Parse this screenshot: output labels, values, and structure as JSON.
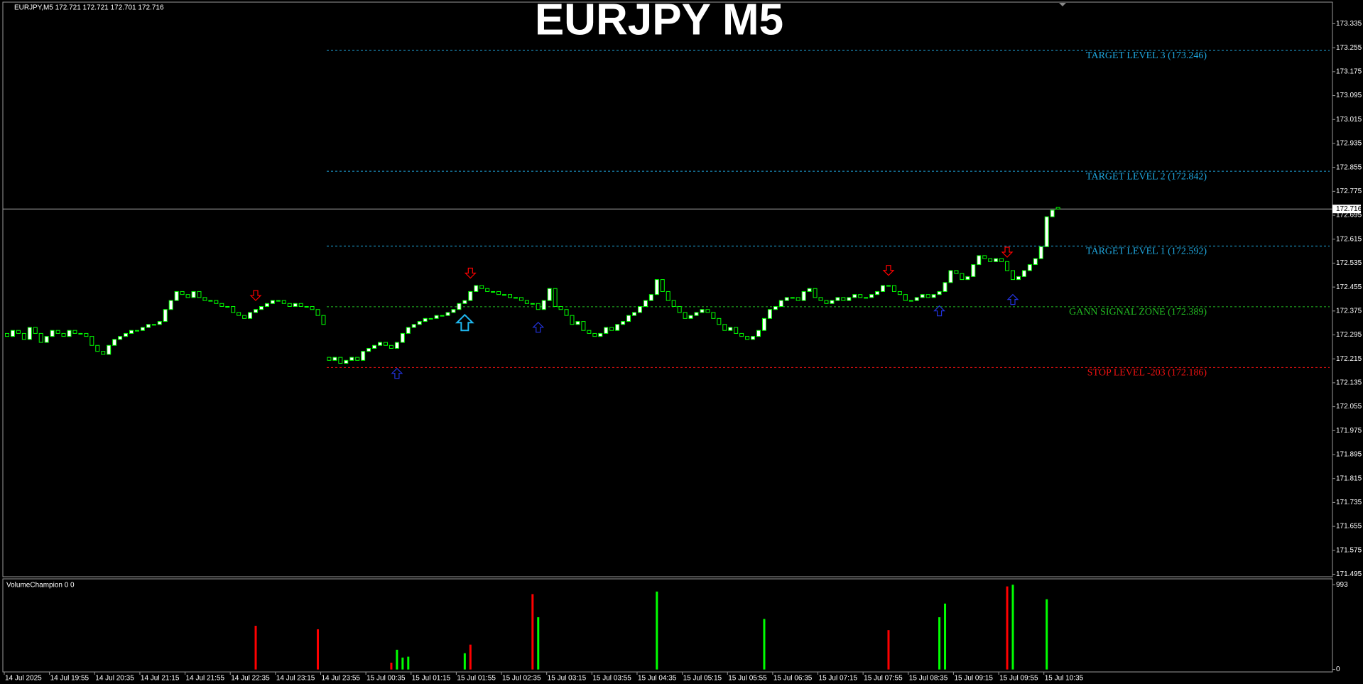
{
  "chart_data": [
    {
      "type": "candlestick",
      "title": "EURJPY M5",
      "symbol_info": "EURJPY,M5  172.721 172.721 172.701 172.716",
      "up_color": "#00ff00",
      "down_color": "#00ff00",
      "open": [
        172.3,
        172.29,
        172.31,
        172.3,
        172.28,
        172.32,
        172.3,
        172.27,
        172.29,
        172.31,
        172.3,
        172.29,
        172.31,
        172.3,
        172.3,
        172.29,
        172.26,
        172.24,
        172.23,
        172.26,
        172.28,
        172.29,
        172.3,
        172.31,
        172.31,
        172.32,
        172.33,
        172.33,
        172.34,
        172.38,
        172.41,
        172.44,
        172.43,
        172.42,
        172.44,
        172.42,
        172.41,
        172.41,
        172.4,
        172.39,
        172.39,
        172.37,
        172.36,
        172.35,
        172.37,
        172.38,
        172.39,
        172.4,
        172.41,
        172.41,
        172.4,
        172.39,
        172.4,
        172.39,
        172.39,
        172.38,
        172.36,
        172.22,
        172.21,
        172.22,
        172.2,
        172.21,
        172.22,
        172.21,
        172.24,
        172.25,
        172.26,
        172.27,
        172.26,
        172.25,
        172.27,
        172.3,
        172.32,
        172.33,
        172.34,
        172.35,
        172.35,
        172.36,
        172.36,
        172.37,
        172.38,
        172.4,
        172.41,
        172.44,
        172.46,
        172.45,
        172.44,
        172.44,
        172.43,
        172.43,
        172.42,
        172.42,
        172.41,
        172.4,
        172.4,
        172.38,
        172.41,
        172.45,
        172.39,
        172.38,
        172.36,
        172.33,
        172.34,
        172.31,
        172.3,
        172.29,
        172.3,
        172.32,
        172.31,
        172.33,
        172.34,
        172.36,
        172.37,
        172.39,
        172.41,
        172.43,
        172.48,
        172.44,
        172.41,
        172.39,
        172.37,
        172.35,
        172.36,
        172.37,
        172.38,
        172.37,
        172.35,
        172.33,
        172.31,
        172.32,
        172.3,
        172.29,
        172.28,
        172.29,
        172.31,
        172.35,
        172.38,
        172.39,
        172.41,
        172.42,
        172.42,
        172.41,
        172.44,
        172.45,
        172.42,
        172.41,
        172.4,
        172.41,
        172.42,
        172.41,
        172.42,
        172.43,
        172.42,
        172.42,
        172.43,
        172.44,
        172.46,
        172.46,
        172.44,
        172.43,
        172.41,
        172.41,
        172.42,
        172.43,
        172.42,
        172.43,
        172.44,
        172.47,
        172.51,
        172.5,
        172.48,
        172.49,
        172.53,
        172.56,
        172.55,
        172.54,
        172.55,
        172.54,
        172.51,
        172.48,
        172.49,
        172.51,
        172.53,
        172.55,
        172.59,
        172.69,
        172.721
      ],
      "close": [
        172.29,
        172.31,
        172.3,
        172.28,
        172.32,
        172.3,
        172.27,
        172.29,
        172.31,
        172.3,
        172.29,
        172.31,
        172.3,
        172.3,
        172.29,
        172.26,
        172.24,
        172.23,
        172.26,
        172.28,
        172.29,
        172.3,
        172.31,
        172.31,
        172.32,
        172.33,
        172.33,
        172.34,
        172.38,
        172.41,
        172.44,
        172.43,
        172.42,
        172.44,
        172.42,
        172.41,
        172.41,
        172.4,
        172.39,
        172.39,
        172.37,
        172.36,
        172.35,
        172.37,
        172.38,
        172.39,
        172.4,
        172.41,
        172.41,
        172.4,
        172.39,
        172.4,
        172.39,
        172.39,
        172.38,
        172.36,
        172.33,
        172.21,
        172.22,
        172.2,
        172.21,
        172.22,
        172.21,
        172.24,
        172.25,
        172.26,
        172.27,
        172.26,
        172.25,
        172.27,
        172.3,
        172.32,
        172.33,
        172.34,
        172.35,
        172.35,
        172.36,
        172.36,
        172.37,
        172.38,
        172.4,
        172.41,
        172.44,
        172.46,
        172.45,
        172.44,
        172.44,
        172.43,
        172.43,
        172.42,
        172.42,
        172.41,
        172.4,
        172.4,
        172.38,
        172.41,
        172.45,
        172.39,
        172.38,
        172.36,
        172.33,
        172.34,
        172.31,
        172.3,
        172.29,
        172.3,
        172.32,
        172.31,
        172.33,
        172.34,
        172.36,
        172.37,
        172.39,
        172.41,
        172.43,
        172.48,
        172.44,
        172.41,
        172.39,
        172.37,
        172.35,
        172.36,
        172.37,
        172.38,
        172.37,
        172.35,
        172.33,
        172.31,
        172.32,
        172.3,
        172.29,
        172.28,
        172.29,
        172.31,
        172.35,
        172.38,
        172.39,
        172.41,
        172.42,
        172.42,
        172.41,
        172.44,
        172.45,
        172.42,
        172.41,
        172.4,
        172.41,
        172.42,
        172.41,
        172.42,
        172.43,
        172.42,
        172.42,
        172.43,
        172.44,
        172.46,
        172.46,
        172.44,
        172.43,
        172.41,
        172.41,
        172.42,
        172.43,
        172.42,
        172.43,
        172.44,
        172.47,
        172.51,
        172.5,
        172.48,
        172.49,
        172.53,
        172.56,
        172.55,
        172.54,
        172.55,
        172.54,
        172.51,
        172.48,
        172.49,
        172.51,
        172.53,
        172.55,
        172.59,
        172.69,
        172.712,
        172.716
      ],
      "ylim": [
        171.489,
        173.405
      ],
      "yticks": [
        171.495,
        171.575,
        171.655,
        171.735,
        171.815,
        171.895,
        171.975,
        172.055,
        172.135,
        172.215,
        172.295,
        172.375,
        172.455,
        172.535,
        172.615,
        172.695,
        172.775,
        172.855,
        172.935,
        173.015,
        173.095,
        173.175,
        173.255,
        173.335
      ],
      "xticks": [
        {
          "value": 0,
          "label": "14 Jul 2025"
        },
        {
          "value": 8,
          "label": "14 Jul 19:55"
        },
        {
          "value": 16,
          "label": "14 Jul 20:35"
        },
        {
          "value": 24,
          "label": "14 Jul 21:15"
        },
        {
          "value": 32,
          "label": "14 Jul 21:55"
        },
        {
          "value": 40,
          "label": "14 Jul 22:35"
        },
        {
          "value": 48,
          "label": "14 Jul 23:15"
        },
        {
          "value": 56,
          "label": "14 Jul 23:55"
        },
        {
          "value": 64,
          "label": "15 Jul 00:35"
        },
        {
          "value": 72,
          "label": "15 Jul 01:15"
        },
        {
          "value": 80,
          "label": "15 Jul 01:55"
        },
        {
          "value": 88,
          "label": "15 Jul 02:35"
        },
        {
          "value": 96,
          "label": "15 Jul 03:15"
        },
        {
          "value": 104,
          "label": "15 Jul 03:55"
        },
        {
          "value": 112,
          "label": "15 Jul 04:35"
        },
        {
          "value": 120,
          "label": "15 Jul 05:15"
        },
        {
          "value": 128,
          "label": "15 Jul 05:55"
        },
        {
          "value": 136,
          "label": "15 Jul 06:35"
        },
        {
          "value": 144,
          "label": "15 Jul 07:15"
        },
        {
          "value": 152,
          "label": "15 Jul 07:55"
        },
        {
          "value": 160,
          "label": "15 Jul 08:35"
        },
        {
          "value": 168,
          "label": "15 Jul 09:15"
        },
        {
          "value": 176,
          "label": "15 Jul 09:55"
        },
        {
          "value": 184,
          "label": "15 Jul 10:35"
        }
      ],
      "last_price": 172.716,
      "levels": [
        {
          "label": "TARGET LEVEL 3 (173.246)",
          "value": 173.246,
          "color": "#1fa8e0"
        },
        {
          "label": "TARGET LEVEL 2 (172.842)",
          "value": 172.842,
          "color": "#1fa8e0"
        },
        {
          "label": "TARGET LEVEL 1 (172.592)",
          "value": 172.592,
          "color": "#1fa8e0"
        },
        {
          "label": "GANN SIGNAL ZONE (172.389)",
          "value": 172.389,
          "color": "#22bb22"
        },
        {
          "label": "STOP LEVEL -203 (172.186)",
          "value": 172.186,
          "color": "#ee1111"
        }
      ],
      "signals": [
        {
          "bar": 44,
          "price": 172.41,
          "direction": "down",
          "color": "#ff0000"
        },
        {
          "bar": 82,
          "price": 172.485,
          "direction": "down",
          "color": "#ff0000"
        },
        {
          "bar": 156,
          "price": 172.494,
          "direction": "down",
          "color": "#ff0000"
        },
        {
          "bar": 177,
          "price": 172.555,
          "direction": "down",
          "color": "#ff0000"
        },
        {
          "bar": 69,
          "price": 172.183,
          "direction": "up",
          "color": "#2233dd"
        },
        {
          "bar": 94,
          "price": 172.337,
          "direction": "up",
          "color": "#2233dd"
        },
        {
          "bar": 165,
          "price": 172.392,
          "direction": "up",
          "color": "#2233dd"
        },
        {
          "bar": 178,
          "price": 172.43,
          "direction": "up",
          "color": "#2233dd"
        },
        {
          "bar": 81,
          "price": 172.343,
          "direction": "up-large",
          "color": "#1fb8f0"
        }
      ]
    },
    {
      "type": "bar",
      "title": "VolumeChampion 0 0",
      "series": [
        {
          "color": "#ff0000",
          "x": [
            44,
            55,
            68,
            82,
            93,
            156,
            177
          ],
          "values": [
            512,
            471,
            80,
            291,
            883,
            461,
            973
          ]
        },
        {
          "color": "#00ff00",
          "x": [
            69,
            70,
            71,
            81,
            94,
            115,
            134,
            165,
            166,
            178,
            184
          ],
          "values": [
            231,
            140,
            150,
            191,
            612,
            913,
            592,
            612,
            772,
            993,
            823
          ]
        }
      ],
      "ylim": [
        -20,
        1053
      ],
      "yticks": [
        0,
        993
      ]
    }
  ]
}
